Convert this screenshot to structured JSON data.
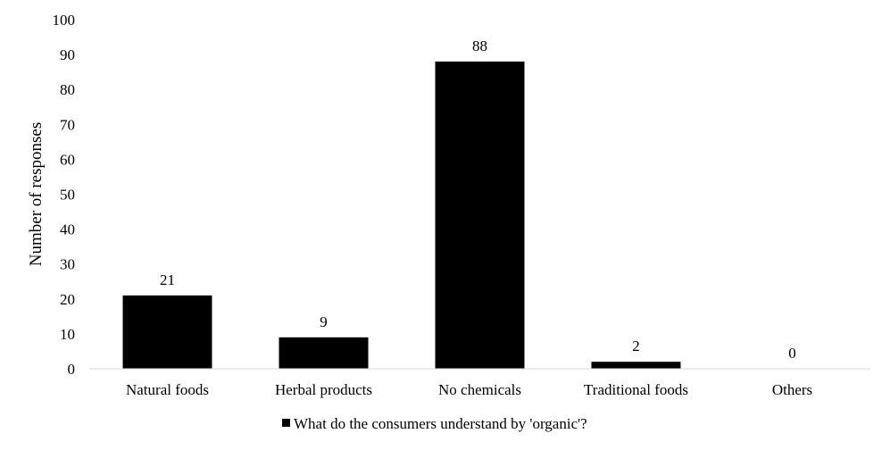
{
  "chart_data": {
    "type": "bar",
    "categories": [
      "Natural foods",
      "Herbal products",
      "No chemicals",
      "Traditional foods",
      "Others"
    ],
    "series": [
      {
        "name": "What do the consumers understand by 'organic'?",
        "values": [
          21,
          9,
          88,
          2,
          0
        ],
        "color": "#000000"
      }
    ],
    "data_labels": [
      "21",
      "9",
      "88",
      "2",
      "0"
    ],
    "ylabel": "Number of responses",
    "xlabel": "",
    "ylim": [
      0,
      100
    ],
    "yticks": [
      0,
      10,
      20,
      30,
      40,
      50,
      60,
      70,
      80,
      90,
      100
    ],
    "grid": false,
    "legend_position": "bottom"
  }
}
